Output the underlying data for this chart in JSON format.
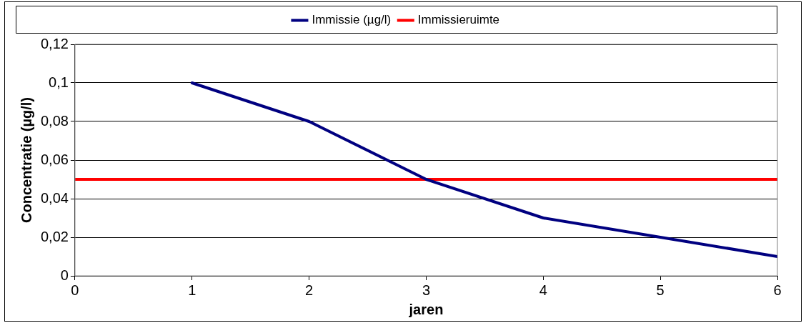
{
  "chart_data": {
    "type": "line",
    "xlabel": "jaren",
    "ylabel": "Concentratie (µg/l)",
    "series": [
      {
        "name": "Immissie (µg/l)",
        "color": "#000080",
        "x": [
          1,
          2,
          3,
          4,
          5,
          6
        ],
        "values": [
          0.1,
          0.08,
          0.05,
          0.03,
          0.02,
          0.01
        ]
      },
      {
        "name": "Immissieruimte",
        "color": "#ff0000",
        "x": [
          0,
          6
        ],
        "values": [
          0.05,
          0.05
        ]
      }
    ],
    "xlim": [
      0,
      6
    ],
    "xticks": [
      0,
      1,
      2,
      3,
      4,
      5,
      6
    ],
    "ylim": [
      0,
      0.12
    ],
    "yticks": [
      0,
      {
        "value": 0.02,
        "label": "0,02"
      },
      {
        "value": 0.04,
        "label": "0,04"
      },
      {
        "value": 0.06,
        "label": "0,06"
      },
      {
        "value": 0.08,
        "label": "0,08"
      },
      {
        "value": 0.1,
        "label": "0,1"
      },
      {
        "value": 0.12,
        "label": "0,12"
      }
    ],
    "grid": "y",
    "legend": "top",
    "marker": "none",
    "line_style": "solid"
  }
}
